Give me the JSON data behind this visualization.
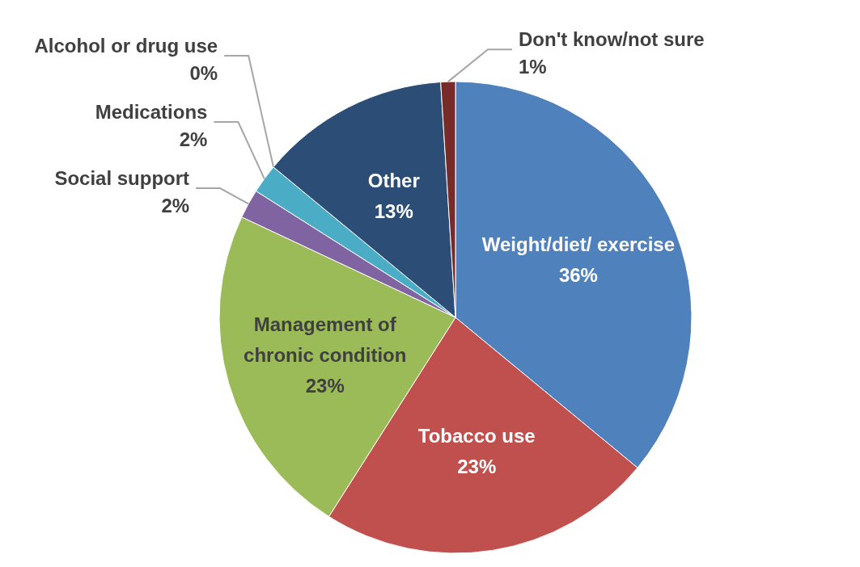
{
  "chart_data": {
    "type": "pie",
    "categories": [
      "Weight/diet/ exercise",
      "Tobacco use",
      "Management of chronic condition",
      "Social support",
      "Medications",
      "Alcohol or drug use",
      "Other",
      "Don't know/not sure"
    ],
    "values": [
      36,
      23,
      23,
      2,
      2,
      0,
      13,
      1
    ],
    "value_labels": [
      "36%",
      "23%",
      "23%",
      "2%",
      "2%",
      "0%",
      "13%",
      "1%"
    ],
    "colors": [
      "#4f81bd",
      "#c0504d",
      "#9bbb59",
      "#8064a2",
      "#4bacc6",
      "#f79646",
      "#2c4d75",
      "#772c2a"
    ]
  }
}
